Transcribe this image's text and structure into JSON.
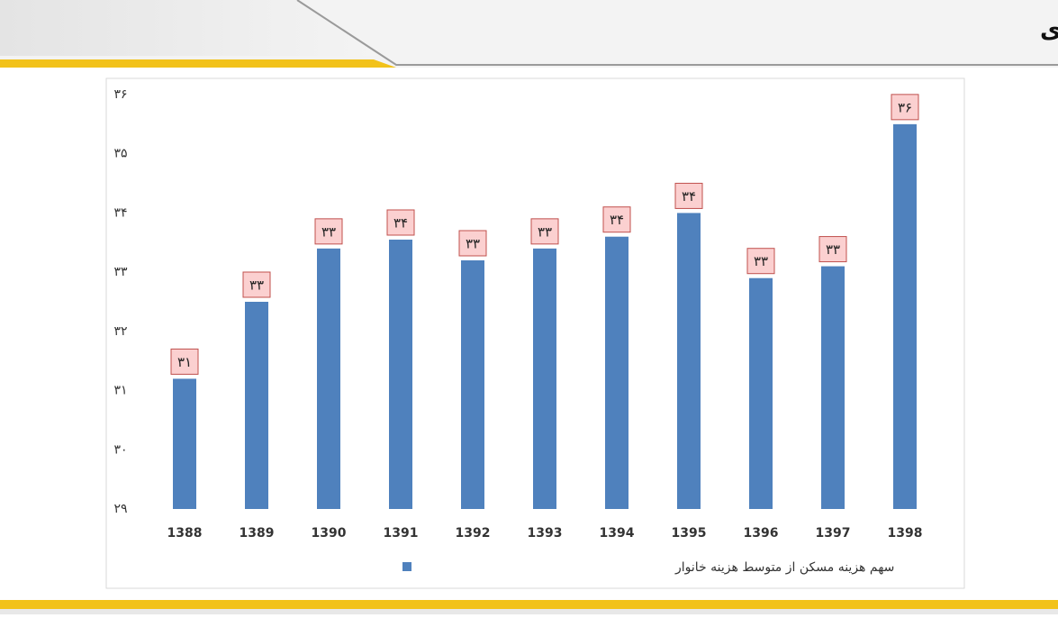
{
  "chart_data": {
    "type": "bar",
    "title": "بررسی سهم مسکن در هزینه خانوارهای شهری",
    "categories": [
      "1388",
      "1389",
      "1390",
      "1391",
      "1392",
      "1393",
      "1394",
      "1395",
      "1396",
      "1397",
      "1398"
    ],
    "series": [
      {
        "name": "سهم هزینه مسکن از متوسط هزینه خانوار",
        "color": "#4f81bd",
        "values": [
          31.2,
          32.5,
          33.4,
          33.55,
          33.2,
          33.4,
          33.6,
          34.0,
          32.9,
          33.1,
          35.5
        ],
        "value_labels": [
          "۳۱",
          "۳۳",
          "۳۳",
          "۳۴",
          "۳۳",
          "۳۳",
          "۳۴",
          "۳۴",
          "۳۳",
          "۳۳",
          "۳۶"
        ]
      }
    ],
    "ylim": [
      29,
      36
    ],
    "yticks": [
      {
        "value": 29,
        "label": "۲۹"
      },
      {
        "value": 30,
        "label": "۳۰"
      },
      {
        "value": 31,
        "label": "۳۱"
      },
      {
        "value": 32,
        "label": "۳۲"
      },
      {
        "value": 33,
        "label": "۳۳"
      },
      {
        "value": 34,
        "label": "۳۴"
      },
      {
        "value": 35,
        "label": "۳۵"
      },
      {
        "value": 36,
        "label": "۳۶"
      }
    ],
    "grid": false
  }
}
